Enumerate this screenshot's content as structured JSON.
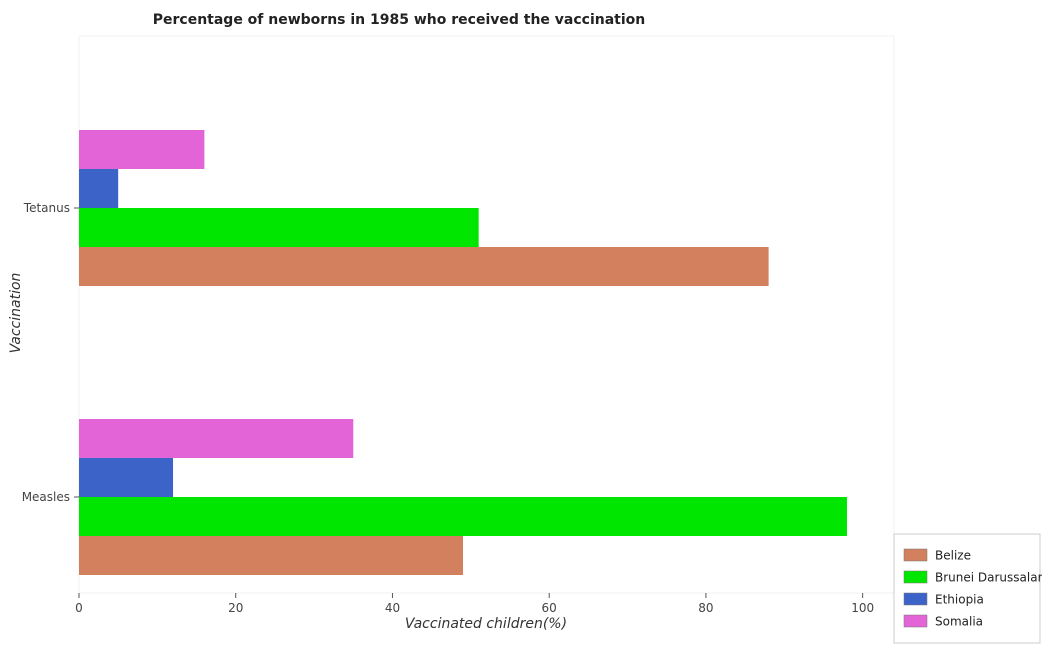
{
  "chart_data": {
    "type": "bar",
    "orientation": "horizontal",
    "title": "Percentage of newborns in 1985 who received the vaccination",
    "xlabel": "Vaccinated children(%)",
    "ylabel": "Vaccination",
    "xlim": [
      0,
      104
    ],
    "xticks": [
      0,
      20,
      40,
      60,
      80,
      100
    ],
    "categories": [
      "Measles",
      "Tetanus"
    ],
    "series": [
      {
        "name": "Belize",
        "color": "#d2805e",
        "values": [
          49,
          88
        ]
      },
      {
        "name": "Brunei Darussalam",
        "color": "#00e600",
        "values": [
          98,
          51
        ]
      },
      {
        "name": "Ethiopia",
        "color": "#3c64c8",
        "values": [
          12,
          5
        ]
      },
      {
        "name": "Somalia",
        "color": "#e364d6",
        "values": [
          35,
          16
        ]
      }
    ],
    "grid": false,
    "legend_position": "bottom-right"
  }
}
